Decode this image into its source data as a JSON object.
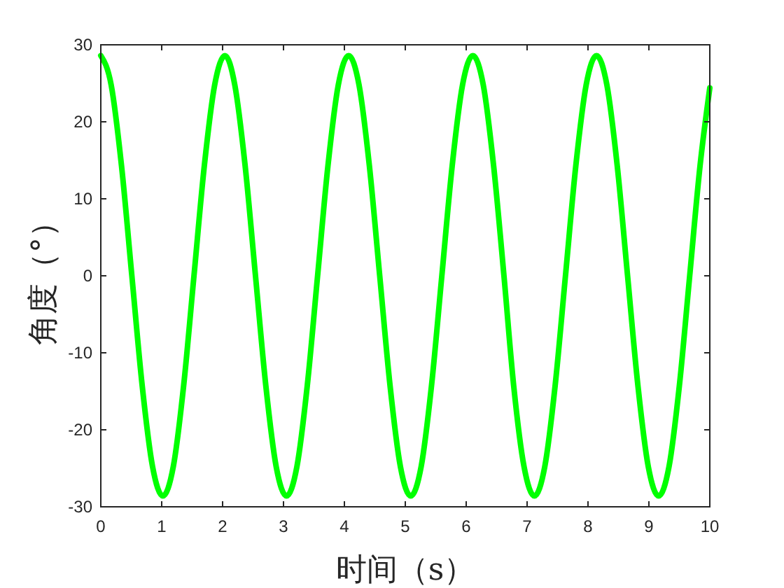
{
  "chart_data": {
    "type": "line",
    "xlabel": "时间（s）",
    "ylabel": "角度（°）",
    "xlim": [
      0,
      10
    ],
    "ylim": [
      -30,
      30
    ],
    "xticks": [
      0,
      1,
      2,
      3,
      4,
      5,
      6,
      7,
      8,
      9,
      10
    ],
    "yticks": [
      -30,
      -20,
      -10,
      0,
      10,
      20,
      30
    ],
    "grid": false,
    "series": [
      {
        "color": "#00ff00",
        "x": [
          0,
          0.17,
          0.34,
          0.51,
          0.68,
          0.85,
          1.02,
          1.19,
          1.36,
          1.53,
          1.7,
          1.87,
          2.04,
          2.2,
          2.37,
          2.54,
          2.71,
          2.88,
          3.05,
          3.22,
          3.39,
          3.56,
          3.73,
          3.9,
          4.07,
          4.24,
          4.41,
          4.58,
          4.75,
          4.92,
          5.09,
          5.26,
          5.43,
          5.6,
          5.77,
          5.94,
          6.11,
          6.28,
          6.45,
          6.62,
          6.78,
          6.95,
          7.12,
          7.29,
          7.46,
          7.63,
          7.8,
          7.97,
          8.14,
          8.31,
          8.48,
          8.65,
          8.82,
          8.99,
          9.16,
          9.33,
          9.5,
          9.67,
          9.84,
          10
        ],
        "values": [
          28.6,
          24.8,
          14.3,
          0,
          -14.3,
          -24.8,
          -28.6,
          -24.8,
          -14.3,
          0,
          14.3,
          24.8,
          28.6,
          24.8,
          14.3,
          0,
          -14.3,
          -24.8,
          -28.6,
          -24.8,
          -14.3,
          0,
          14.3,
          24.8,
          28.6,
          24.8,
          14.3,
          0,
          -14.3,
          -24.8,
          -28.6,
          -24.8,
          -14.3,
          0,
          14.3,
          24.8,
          28.6,
          24.8,
          14.3,
          0,
          -14.3,
          -24.8,
          -28.6,
          -24.8,
          -14.3,
          0,
          14.3,
          24.8,
          28.6,
          24.8,
          14.3,
          0,
          -14.3,
          -24.8,
          -28.6,
          -24.8,
          -14.3,
          0,
          14.3,
          24.4
        ]
      }
    ]
  }
}
